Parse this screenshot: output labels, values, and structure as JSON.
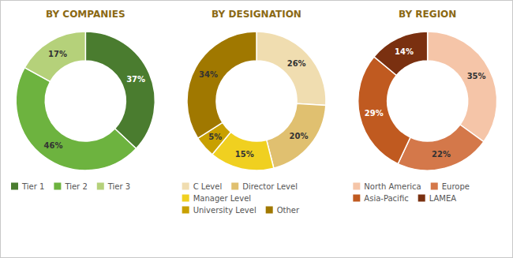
{
  "chart_data": [
    {
      "type": "donut",
      "title": "BY COMPANIES",
      "categories": [
        "Tier 1",
        "Tier 2",
        "Tier 3"
      ],
      "values": [
        37,
        46,
        17
      ],
      "value_labels": [
        "37%",
        "46%",
        "17%"
      ],
      "colors": [
        "#4a7c2f",
        "#6db33f",
        "#b5d17a"
      ],
      "data_labels": true,
      "legend": "bottom"
    },
    {
      "type": "donut",
      "title": "BY DESIGNATION",
      "categories": [
        "C Level",
        "Director Level",
        "Manager Level",
        "University Level",
        "Other"
      ],
      "values": [
        26,
        20,
        15,
        5,
        34
      ],
      "value_labels": [
        "26%",
        "20%",
        "15%",
        "5%",
        "34%"
      ],
      "colors": [
        "#f0ddb0",
        "#e0c070",
        "#f0d020",
        "#c8a000",
        "#a07800"
      ],
      "data_labels": true,
      "legend": "bottom"
    },
    {
      "type": "donut",
      "title": "BY REGION",
      "categories": [
        "North America",
        "Europe",
        "Asia-Pacific",
        "LAMEA"
      ],
      "values": [
        35,
        22,
        29,
        14
      ],
      "value_labels": [
        "35%",
        "22%",
        "29%",
        "14%"
      ],
      "colors": [
        "#f5c5a8",
        "#d4784a",
        "#c05a20",
        "#7a3010"
      ],
      "data_labels": true,
      "legend": "bottom"
    }
  ]
}
